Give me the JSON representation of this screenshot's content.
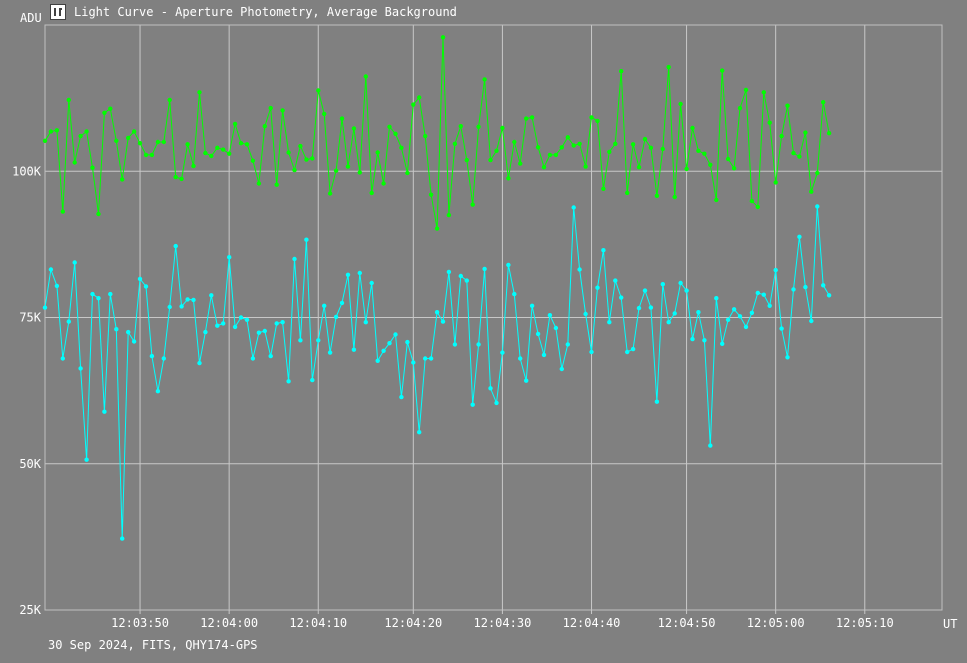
{
  "window": {
    "title": "Light Curve - Aperture Photometry, Average Background",
    "icon": "chart-icon"
  },
  "footer": {
    "text": "30 Sep 2024, FITS, QHY174-GPS"
  },
  "chart_data": {
    "type": "line",
    "title": "",
    "ylabel": "ADU",
    "xlabel": "UT",
    "ylim": [
      25000,
      125000
    ],
    "xlim": [
      0,
      151
    ],
    "y_ticks": [
      {
        "value": 100000,
        "label": "100K"
      },
      {
        "value": 75000,
        "label": "75K"
      },
      {
        "value": 50000,
        "label": "50K"
      },
      {
        "value": 25000,
        "label": "25K"
      }
    ],
    "x_ticks": [
      {
        "value": 16,
        "label": "12:03:50"
      },
      {
        "value": 31,
        "label": "12:04:00"
      },
      {
        "value": 46,
        "label": "12:04:10"
      },
      {
        "value": 62,
        "label": "12:04:20"
      },
      {
        "value": 77,
        "label": "12:04:30"
      },
      {
        "value": 92,
        "label": "12:04:40"
      },
      {
        "value": 108,
        "label": "12:04:50"
      },
      {
        "value": 123,
        "label": "12:05:00"
      },
      {
        "value": 138,
        "label": "12:05:10"
      }
    ],
    "grid": true,
    "series": [
      {
        "name": "",
        "color": "#00ff00",
        "values": [
          105200,
          106800,
          107000,
          93100,
          112200,
          101500,
          106000,
          106800,
          100600,
          92700,
          110000,
          110700,
          105200,
          98600,
          105700,
          106800,
          104800,
          102800,
          102800,
          105000,
          105000,
          112200,
          99000,
          98700,
          104600,
          100900,
          113500,
          103100,
          102600,
          104000,
          103700,
          103000,
          108100,
          104800,
          104600,
          101800,
          97900,
          107700,
          110800,
          97700,
          110400,
          103200,
          100200,
          104300,
          102000,
          102200,
          113800,
          109800,
          96200,
          100100,
          109000,
          100800,
          107300,
          99800,
          116200,
          96300,
          103200,
          97900,
          107600,
          106400,
          104000,
          99700,
          111400,
          112600,
          106000,
          96000,
          90200,
          122900,
          92500,
          104700,
          107700,
          101900,
          94300,
          107600,
          115700,
          101900,
          103500,
          107400,
          98800,
          105000,
          101300,
          109000,
          109200,
          104100,
          100700,
          102800,
          102800,
          104100,
          105800,
          104400,
          104700,
          100800,
          109200,
          108600,
          97000,
          103300,
          104700,
          117100,
          96300,
          104600,
          100700,
          105500,
          104000,
          95800,
          103800,
          117800,
          95600,
          111500,
          100400,
          107400,
          103500,
          103000,
          101100,
          95100,
          117200,
          102100,
          100500,
          110800,
          113900,
          94900,
          93900,
          113500,
          108300,
          98100,
          106000,
          111200,
          103100,
          102500,
          106600,
          96500,
          99700,
          111800,
          106500
        ],
        "overlay": [
          {
            "i": 3,
            "v": 93100
          },
          {
            "i": 9,
            "v": 92700
          },
          {
            "i": 13,
            "v": 98600
          }
        ]
      },
      {
        "name": "",
        "color": "#00ffff",
        "values": [
          76700,
          83200,
          80400,
          68000,
          74300,
          84400,
          66300,
          50700,
          79000,
          78300,
          58900,
          79000,
          73000,
          37200,
          72500,
          70900,
          81600,
          80300,
          68400,
          62400,
          68000,
          76800,
          87200,
          76900,
          78100,
          78000,
          67200,
          72500,
          78800,
          73600,
          74000,
          85300,
          73400,
          75000,
          74600,
          68000,
          72400,
          72700,
          68400,
          74000,
          74200,
          64100,
          85000,
          71100,
          88300,
          64300,
          71100,
          77000,
          69000,
          75100,
          77500,
          82300,
          69500,
          82600,
          74200,
          80900,
          67600,
          69300,
          70600,
          72100,
          61400,
          70800,
          67300,
          55400,
          68000,
          68000,
          75900,
          74300,
          82800,
          70400,
          82100,
          81300,
          60100,
          70400,
          83300,
          62900,
          60400,
          69000,
          84000,
          79000,
          68000,
          64200,
          77000,
          72200,
          68600,
          75400,
          73200,
          66200,
          70400,
          93800,
          83200,
          75600,
          69100,
          80100,
          86500,
          74200,
          81300,
          78400,
          69100,
          69600,
          76600,
          79600,
          76700,
          60600,
          80700,
          74200,
          75700,
          80900,
          79600,
          71300,
          75900,
          71100,
          53100,
          78300,
          70500,
          74600,
          76400,
          75200,
          73400,
          75800,
          79200,
          78900,
          77000,
          83100,
          73100,
          68200,
          79800,
          88800,
          80200,
          74400,
          94000,
          80500,
          78800
        ]
      }
    ]
  }
}
